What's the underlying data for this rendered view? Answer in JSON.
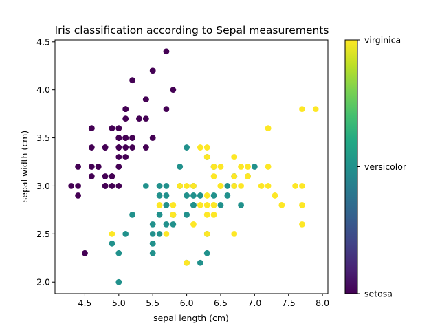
{
  "chart_data": {
    "type": "scatter",
    "title": "Iris classification according to Sepal measurements",
    "xlabel": "sepal length (cm)",
    "ylabel": "sepal width (cm)",
    "xlim": [
      4.06,
      8.08
    ],
    "ylim": [
      1.88,
      4.52
    ],
    "xticks": [
      "4.5",
      "5.0",
      "5.5",
      "6.0",
      "6.5",
      "7.0",
      "7.5",
      "8.0"
    ],
    "yticks": [
      "2.0",
      "2.5",
      "3.0",
      "3.5",
      "4.0",
      "4.5"
    ],
    "grid": false,
    "colormap": "viridis",
    "colorbar": {
      "labels": [
        "setosa",
        "versicolor",
        "virginica"
      ],
      "colors": [
        "#440154",
        "#21918c",
        "#fde725"
      ]
    },
    "series": [
      {
        "name": "setosa",
        "color": "#440154",
        "x": [
          5.1,
          4.9,
          4.7,
          4.6,
          5.0,
          5.4,
          4.6,
          5.0,
          4.4,
          4.9,
          5.4,
          4.8,
          4.8,
          4.3,
          5.8,
          5.7,
          5.4,
          5.1,
          5.7,
          5.1,
          5.4,
          5.1,
          4.6,
          5.1,
          4.8,
          5.0,
          5.0,
          5.2,
          5.2,
          4.7,
          4.8,
          5.4,
          5.2,
          5.5,
          4.9,
          5.0,
          5.5,
          4.9,
          4.4,
          5.1,
          5.0,
          4.5,
          4.4,
          5.0,
          5.1,
          4.8,
          5.1,
          4.6,
          5.3,
          5.0
        ],
        "y": [
          3.5,
          3.0,
          3.2,
          3.1,
          3.6,
          3.9,
          3.4,
          3.4,
          2.9,
          3.1,
          3.7,
          3.4,
          3.0,
          3.0,
          4.0,
          4.4,
          3.9,
          3.5,
          3.8,
          3.8,
          3.4,
          3.7,
          3.6,
          3.3,
          3.4,
          3.0,
          3.4,
          3.5,
          3.4,
          3.2,
          3.1,
          3.4,
          4.1,
          4.2,
          3.1,
          3.2,
          3.5,
          3.6,
          3.0,
          3.4,
          3.5,
          2.3,
          3.2,
          3.5,
          3.8,
          3.0,
          3.8,
          3.2,
          3.7,
          3.3
        ]
      },
      {
        "name": "versicolor",
        "color": "#21918c",
        "x": [
          7.0,
          6.4,
          6.9,
          5.5,
          6.5,
          5.7,
          6.3,
          4.9,
          6.6,
          5.2,
          5.0,
          5.9,
          6.0,
          6.1,
          5.6,
          6.7,
          5.6,
          5.8,
          6.2,
          5.6,
          5.9,
          6.1,
          6.3,
          6.1,
          6.4,
          6.6,
          6.8,
          6.7,
          6.0,
          5.7,
          5.5,
          5.5,
          5.8,
          6.0,
          5.4,
          6.0,
          6.7,
          6.3,
          5.6,
          5.5,
          5.5,
          6.1,
          5.8,
          5.0,
          5.6,
          5.7,
          5.7,
          6.2,
          5.1,
          5.7
        ],
        "y": [
          3.2,
          3.2,
          3.1,
          2.3,
          2.8,
          2.8,
          3.3,
          2.4,
          2.9,
          2.7,
          2.0,
          3.0,
          2.2,
          2.9,
          2.9,
          3.1,
          3.0,
          2.7,
          2.2,
          2.5,
          3.2,
          2.8,
          2.5,
          2.8,
          2.9,
          3.0,
          2.8,
          3.0,
          2.9,
          2.6,
          2.4,
          2.4,
          2.7,
          2.7,
          3.0,
          3.4,
          3.1,
          2.3,
          3.0,
          2.5,
          2.6,
          3.0,
          2.6,
          2.3,
          2.7,
          3.0,
          2.9,
          2.9,
          2.5,
          2.8
        ]
      },
      {
        "name": "virginica",
        "color": "#fde725",
        "x": [
          6.3,
          5.8,
          7.1,
          6.3,
          6.5,
          7.6,
          4.9,
          7.3,
          6.7,
          7.2,
          6.5,
          6.4,
          6.8,
          5.7,
          5.8,
          6.4,
          6.5,
          7.7,
          7.7,
          6.0,
          6.9,
          5.6,
          7.7,
          6.3,
          6.7,
          7.2,
          6.2,
          6.1,
          6.4,
          7.2,
          7.4,
          7.9,
          6.4,
          6.3,
          6.1,
          7.7,
          6.3,
          6.4,
          6.0,
          6.9,
          6.7,
          6.9,
          5.8,
          6.8,
          6.7,
          6.7,
          6.3,
          6.5,
          6.2,
          5.9
        ],
        "y": [
          3.3,
          2.7,
          3.0,
          2.9,
          3.0,
          3.0,
          2.5,
          2.9,
          2.5,
          3.6,
          3.2,
          2.7,
          3.0,
          2.5,
          2.8,
          3.2,
          3.0,
          3.8,
          2.6,
          2.2,
          3.2,
          2.8,
          2.8,
          2.7,
          3.3,
          3.2,
          2.8,
          3.0,
          2.8,
          3.0,
          2.8,
          3.8,
          2.8,
          2.8,
          2.6,
          3.0,
          3.4,
          3.1,
          3.0,
          3.1,
          3.1,
          3.1,
          2.7,
          3.2,
          3.3,
          3.0,
          2.5,
          3.0,
          3.4,
          3.0
        ]
      }
    ]
  }
}
